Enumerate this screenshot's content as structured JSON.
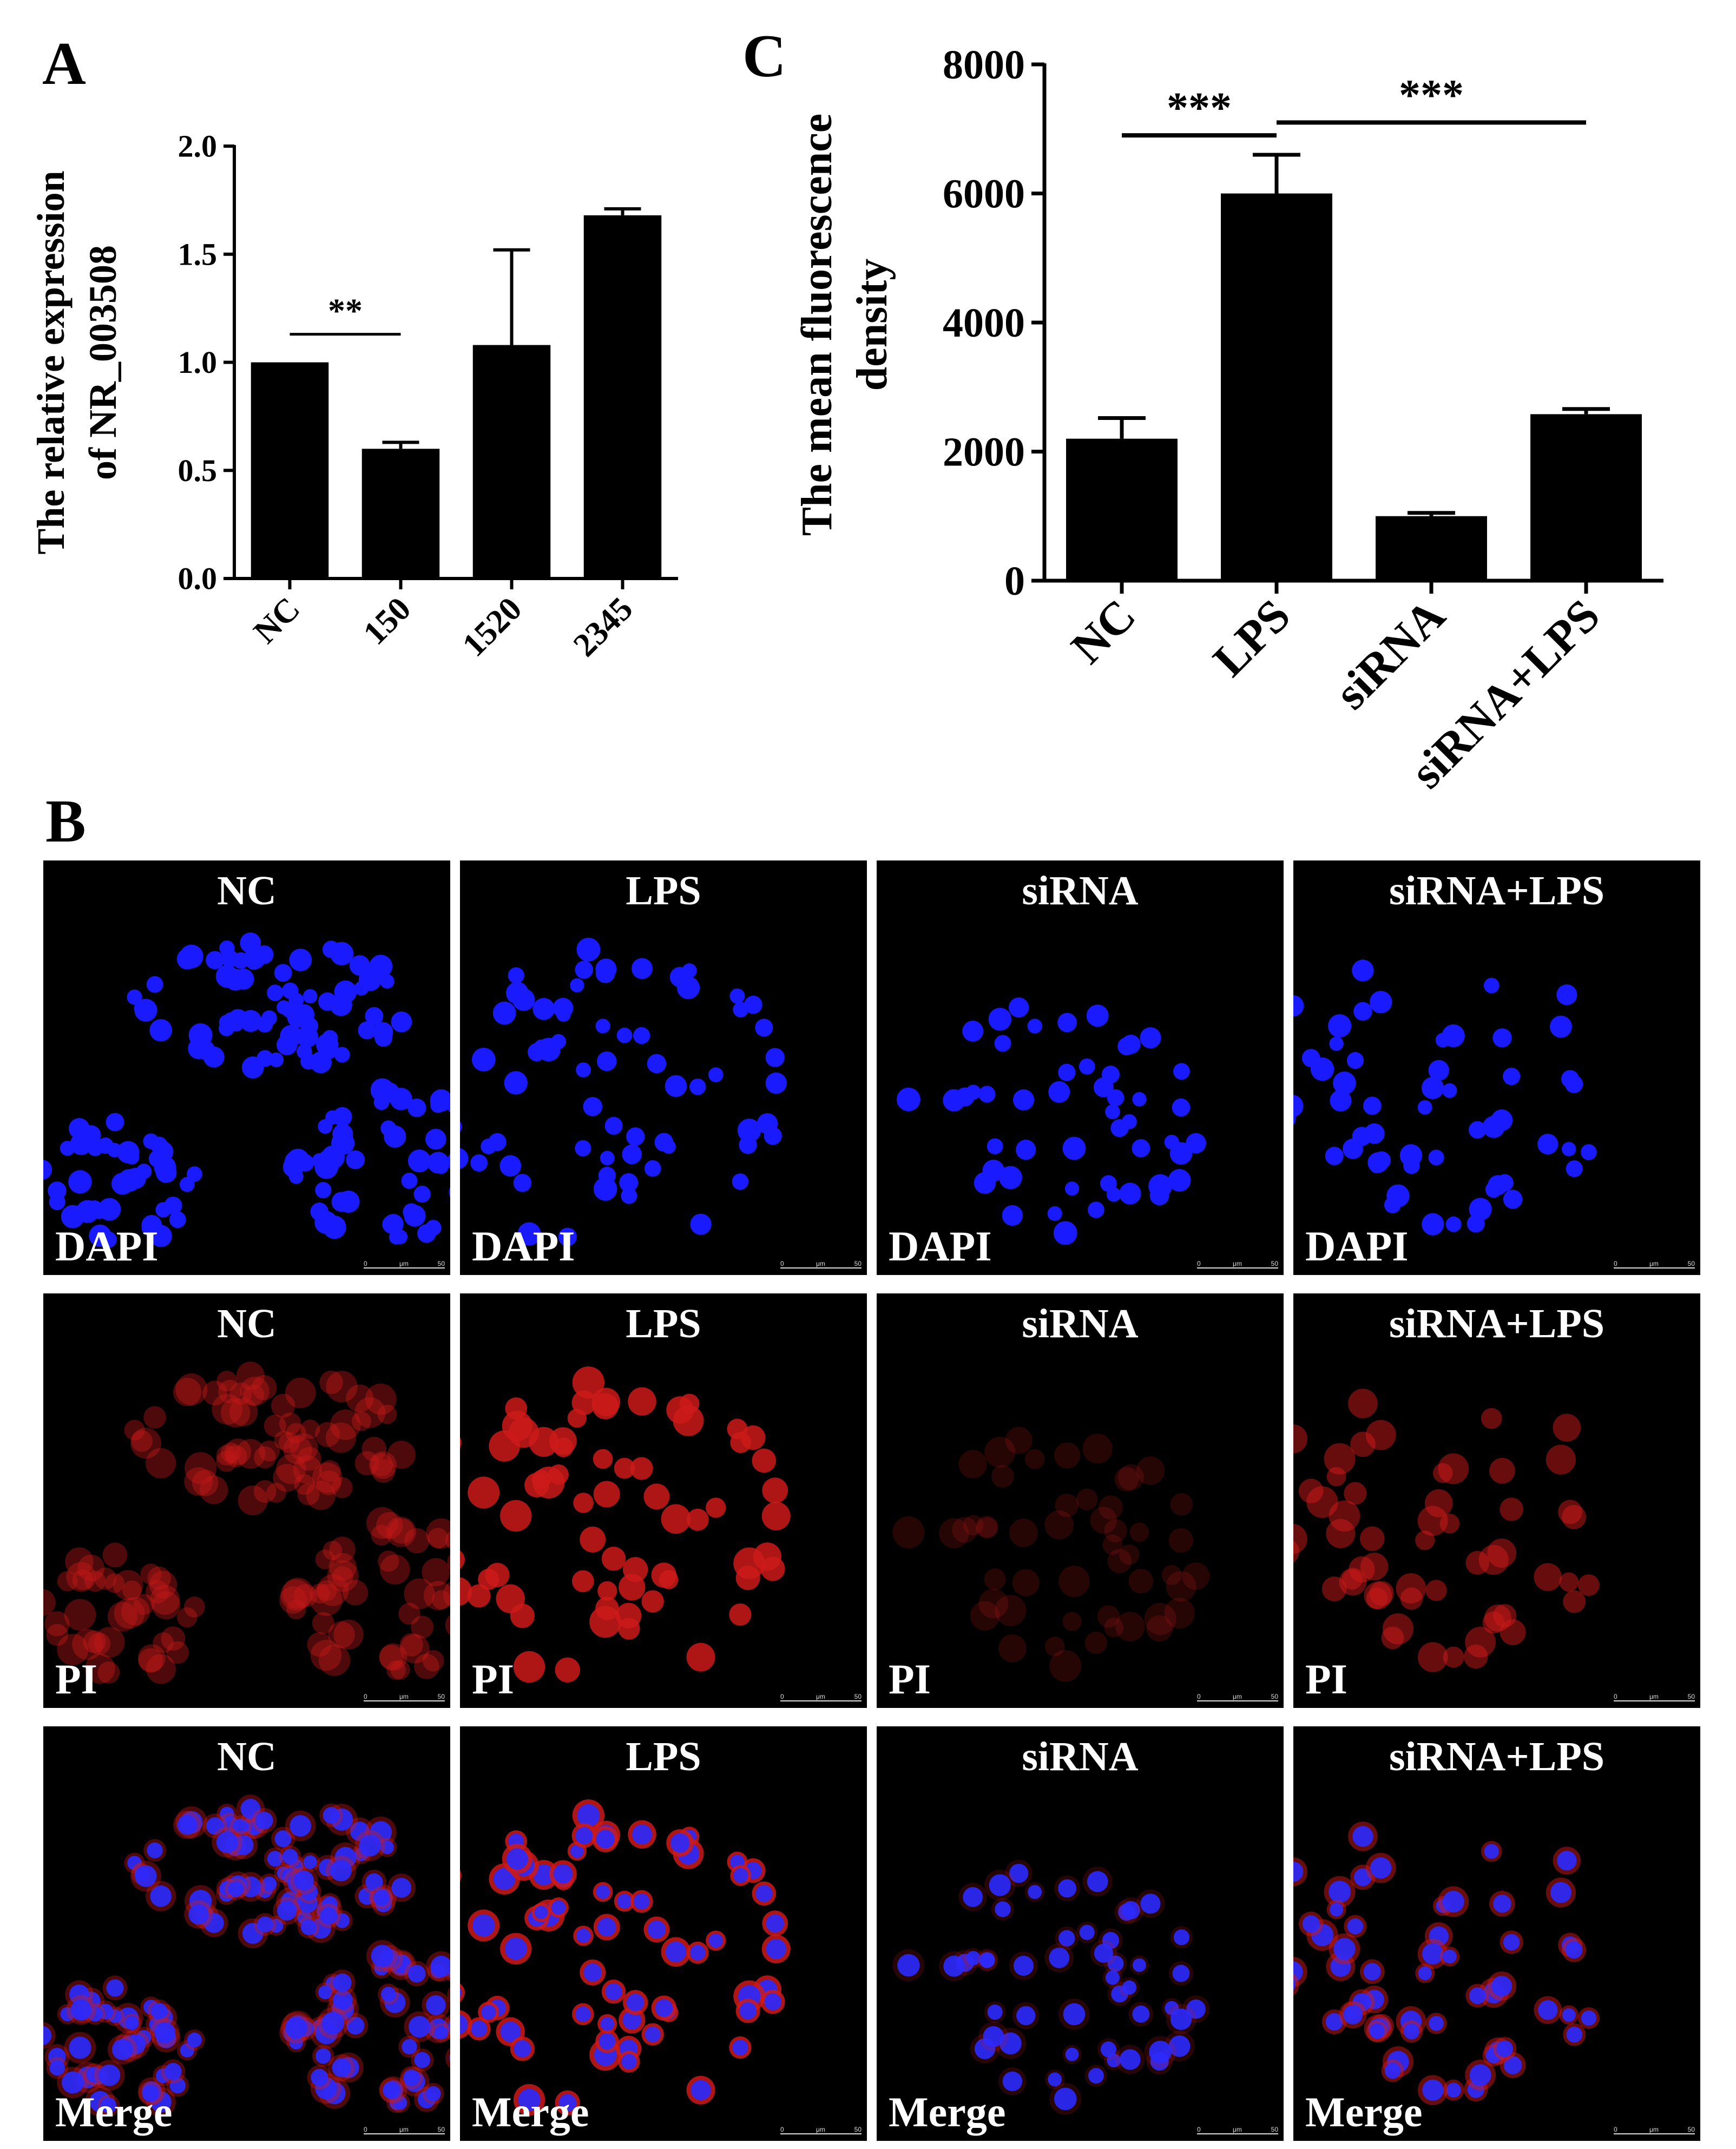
{
  "panel_labels": {
    "a": "A",
    "b": "B",
    "c": "C"
  },
  "chart_data": [
    {
      "id": "A",
      "type": "bar",
      "ylabel_line1": "The relative expression",
      "ylabel_line2": "of NR_003508",
      "categories": [
        "NC",
        "150",
        "1520",
        "2345"
      ],
      "values": [
        1.0,
        0.6,
        1.08,
        1.68
      ],
      "errors": [
        0.0,
        0.03,
        0.44,
        0.03
      ],
      "ylim": [
        0,
        2.0
      ],
      "yticks": [
        "0.0",
        "0.5",
        "1.0",
        "1.5",
        "2.0"
      ],
      "ytick_values": [
        0,
        0.5,
        1.0,
        1.5,
        2.0
      ],
      "significance": [
        {
          "from": 0,
          "to": 1,
          "label": "**",
          "y": 1.13
        }
      ],
      "bar_color": "#000000"
    },
    {
      "id": "C",
      "type": "bar",
      "ylabel_line1": "The mean fluorescence",
      "ylabel_line2": "density",
      "categories": [
        "NC",
        "LPS",
        "siRNA",
        "siRNA+LPS"
      ],
      "values": [
        2200,
        6000,
        1000,
        2580
      ],
      "errors": [
        320,
        600,
        50,
        80
      ],
      "ylim": [
        0,
        8000
      ],
      "yticks": [
        "0",
        "2000",
        "4000",
        "6000",
        "8000"
      ],
      "ytick_values": [
        0,
        2000,
        4000,
        6000,
        8000
      ],
      "significance": [
        {
          "from": 0,
          "to": 1,
          "label": "***",
          "y": 6900
        },
        {
          "from": 1,
          "to": 3,
          "label": "***",
          "y": 7100
        }
      ],
      "bar_color": "#000000"
    }
  ],
  "microscopy": {
    "columns": [
      "NC",
      "LPS",
      "siRNA",
      "siRNA+LPS"
    ],
    "rows": [
      {
        "stain": "DAPI",
        "nucleus_color": "#1a1aff"
      },
      {
        "stain": "PI",
        "nucleus_color": "#cc1a1a"
      },
      {
        "stain": "Merge",
        "nucleus_color": "#2a2aff"
      }
    ],
    "pi_intensity": [
      0.45,
      1.0,
      0.22,
      0.6
    ],
    "scale_bar": {
      "start": "0",
      "unit": "μm",
      "end": "50"
    }
  }
}
